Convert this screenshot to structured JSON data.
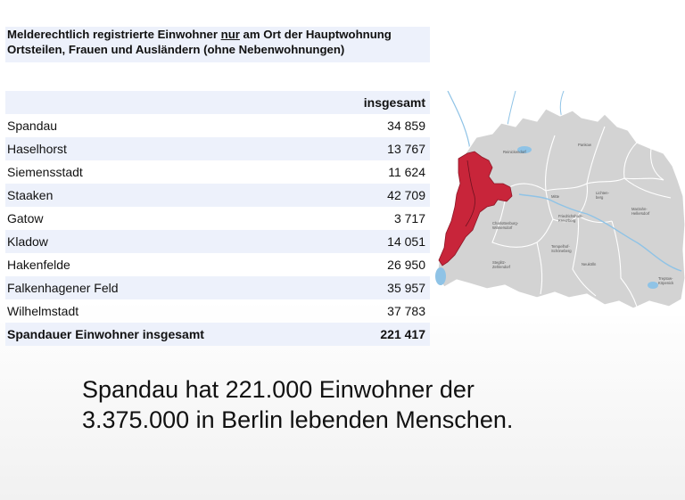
{
  "heading": {
    "line1_before": "Melderechtlich registrierte Einwohner ",
    "line1_underlined": "nur",
    "line1_after": " am Ort der Hauptwohnung",
    "line2": "Ortsteilen, Frauen und Ausländern (ohne Nebenwohnungen)"
  },
  "table": {
    "column_header": "insgesamt",
    "rows": [
      {
        "name": "Spandau",
        "value": "34 859"
      },
      {
        "name": "Haselhorst",
        "value": "13 767"
      },
      {
        "name": "Siemensstadt",
        "value": "11 624"
      },
      {
        "name": "Staaken",
        "value": "42 709"
      },
      {
        "name": "Gatow",
        "value": "3 717"
      },
      {
        "name": "Kladow",
        "value": "14 051"
      },
      {
        "name": "Hakenfelde",
        "value": "26 950"
      },
      {
        "name": "Falkenhagener Feld",
        "value": "35 957"
      },
      {
        "name": "Wilhelmstadt",
        "value": "37 783"
      }
    ],
    "total": {
      "name": "Spandauer Einwohner insgesamt",
      "value": "221 417"
    }
  },
  "map": {
    "highlight_color": "#c8253a",
    "district_color": "#d3d3d3",
    "water_color": "#8fc3e6",
    "labels": {
      "reinickendorf": "Reinickendorf",
      "pankow": "Pankow",
      "lichtenberg": "Lichten-\nberg",
      "mitte": "Mitte",
      "marzahn": "Marzahn-\nHellersdorf",
      "charlottenburg": "Charlottenburg-\nWilmersdorf",
      "friedrichshain": "Friedrichshain-\nKreuzberg",
      "tempelhof": "Tempelhof-\nSchöneberg",
      "steglitz": "Steglitz-\nZehlendorf",
      "neukoelln": "Neukölln",
      "treptow": "Treptow-\nKöpenick"
    }
  },
  "caption": {
    "line1": "Spandau hat 221.000 Einwohner der",
    "line2": "3.375.000 in Berlin lebenden Menschen."
  }
}
